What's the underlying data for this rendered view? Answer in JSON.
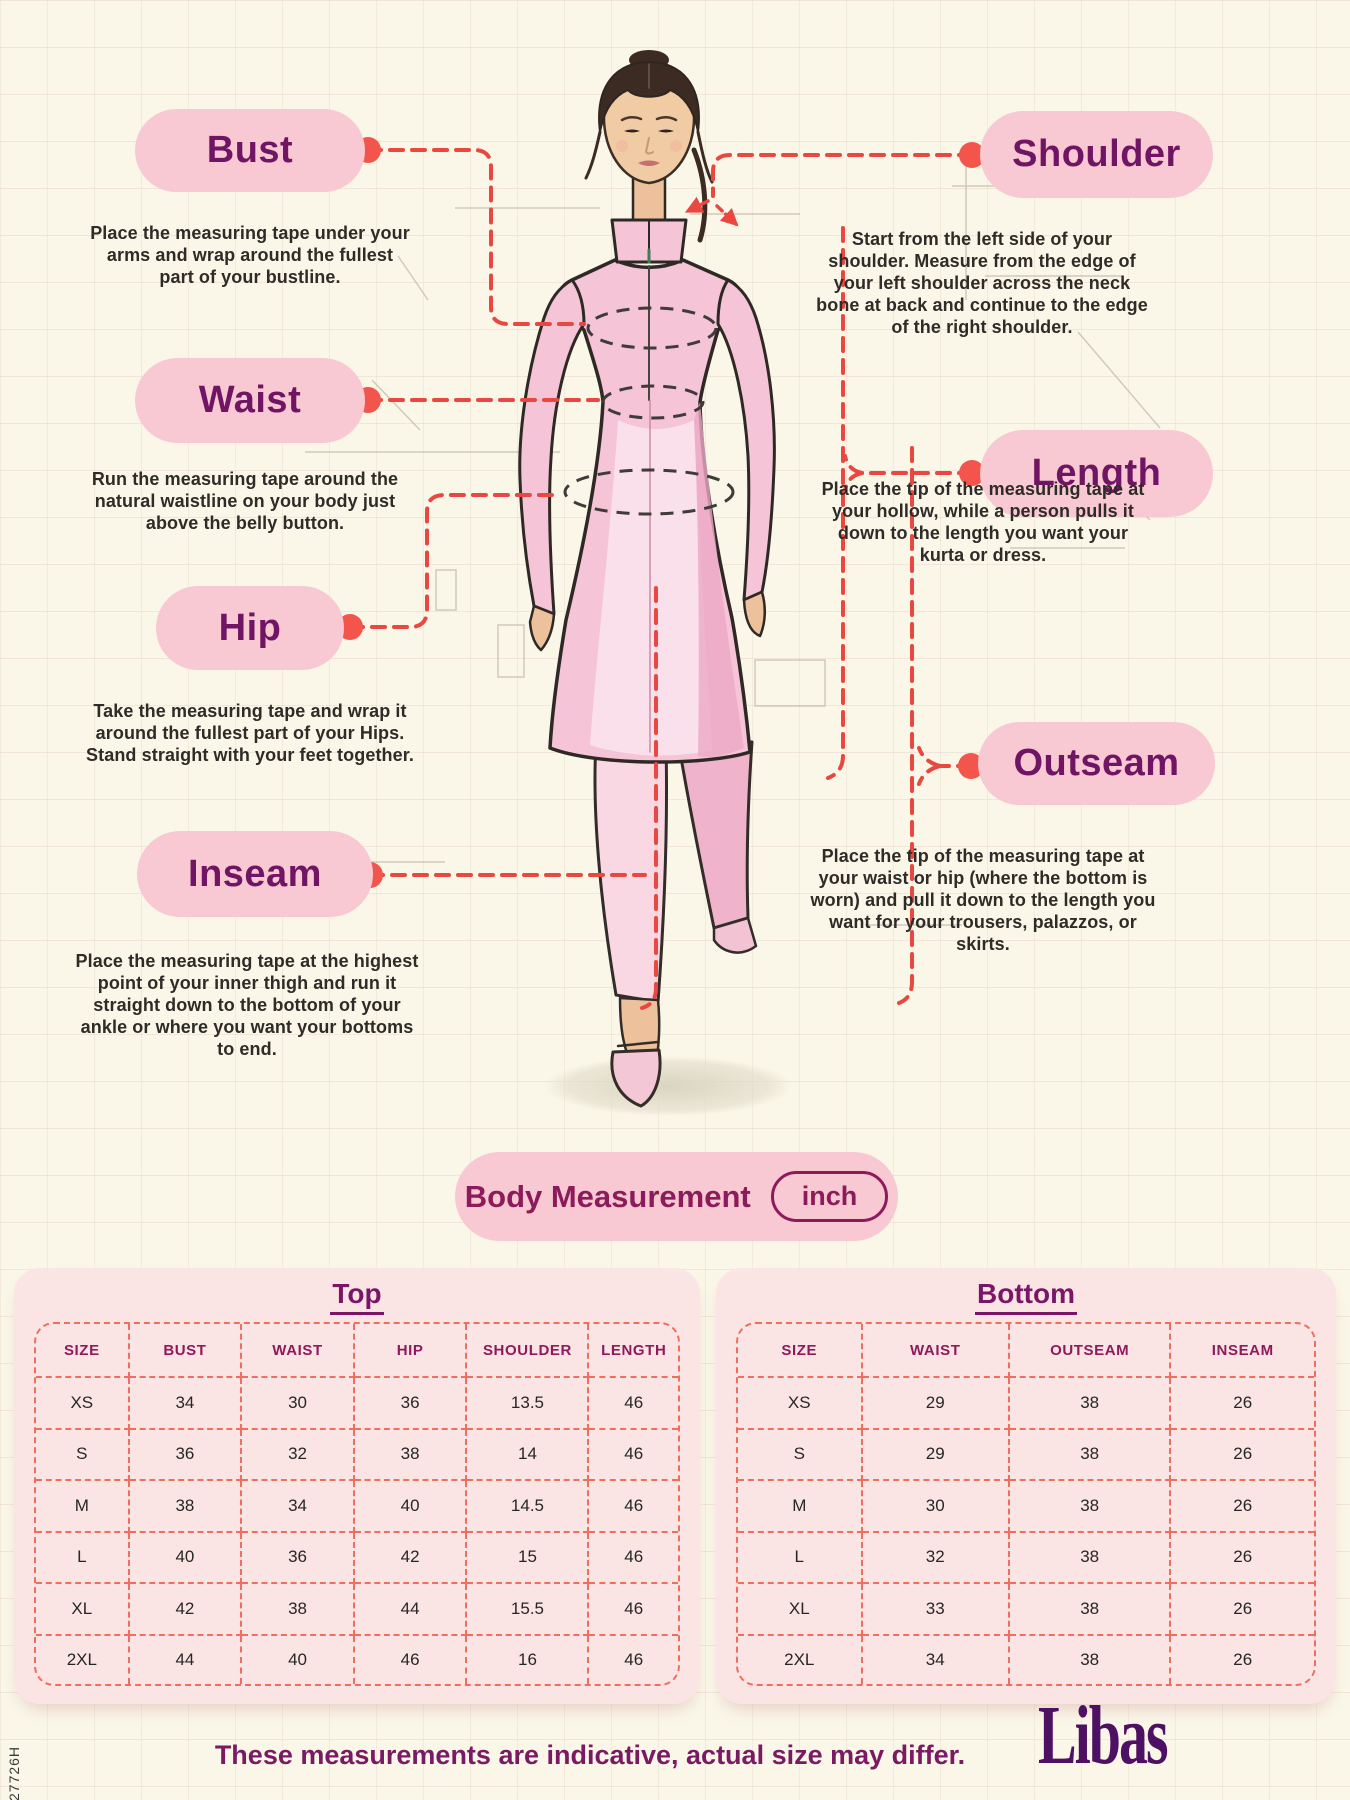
{
  "colors": {
    "background_cream": "#FAF7E8",
    "pill_pink": "#F8C8D3",
    "card_pink": "#FBE5E4",
    "heading_purple": "#701563",
    "table_header_magenta": "#8F195D",
    "dashed_coral": "#EE6F5E",
    "accent_red": "#E84840",
    "footer_purple": "#7A1A63",
    "brand_purple": "#4E1062"
  },
  "annotations": [
    {
      "id": "bust",
      "label": "Bust",
      "description": "Place the measuring tape under your arms and wrap around the fullest part of your bustline."
    },
    {
      "id": "waist",
      "label": "Waist",
      "description": "Run the measuring tape around the natural waistline on your body just above the belly button."
    },
    {
      "id": "hip",
      "label": "Hip",
      "description": "Take the measuring tape and wrap it around the fullest part of your Hips. Stand straight with your feet together."
    },
    {
      "id": "inseam",
      "label": "Inseam",
      "description": "Place the measuring tape at the highest point of your inner thigh and run it straight down to the bottom of your ankle or where you want your bottoms to end."
    },
    {
      "id": "shoulder",
      "label": "Shoulder",
      "description": "Start from the left side of your shoulder. Measure from the edge of your left shoulder across the neck bone at back and continue to the edge of the right shoulder."
    },
    {
      "id": "length",
      "label": "Length",
      "description": "Place the tip of the measuring tape at your hollow, while a person pulls it down to the length you want your kurta or dress."
    },
    {
      "id": "outseam",
      "label": "Outseam",
      "description": "Place the tip of the measuring tape at your waist or hip (where the bottom is worn) and pull it down to the length you want for your trousers, palazzos, or skirts."
    }
  ],
  "measurement_bar": {
    "label": "Body Measurement",
    "unit": "inch"
  },
  "tables": {
    "top": {
      "title": "Top",
      "headers": [
        "SIZE",
        "BUST",
        "WAIST",
        "HIP",
        "SHOULDER",
        "LENGTH"
      ],
      "rows": [
        [
          "XS",
          "34",
          "30",
          "36",
          "13.5",
          "46"
        ],
        [
          "S",
          "36",
          "32",
          "38",
          "14",
          "46"
        ],
        [
          "M",
          "38",
          "34",
          "40",
          "14.5",
          "46"
        ],
        [
          "L",
          "40",
          "36",
          "42",
          "15",
          "46"
        ],
        [
          "XL",
          "42",
          "38",
          "44",
          "15.5",
          "46"
        ],
        [
          "2XL",
          "44",
          "40",
          "46",
          "16",
          "46"
        ]
      ]
    },
    "bottom": {
      "title": "Bottom",
      "headers": [
        "SIZE",
        "WAIST",
        "OUTSEAM",
        "INSEAM"
      ],
      "rows": [
        [
          "XS",
          "29",
          "38",
          "26"
        ],
        [
          "S",
          "29",
          "38",
          "26"
        ],
        [
          "M",
          "30",
          "38",
          "26"
        ],
        [
          "L",
          "32",
          "38",
          "26"
        ],
        [
          "XL",
          "33",
          "38",
          "26"
        ],
        [
          "2XL",
          "34",
          "38",
          "26"
        ]
      ]
    }
  },
  "footer": {
    "note": "These measurements are indicative, actual size may differ.",
    "brand": "Libas",
    "side_code": "27726H"
  }
}
